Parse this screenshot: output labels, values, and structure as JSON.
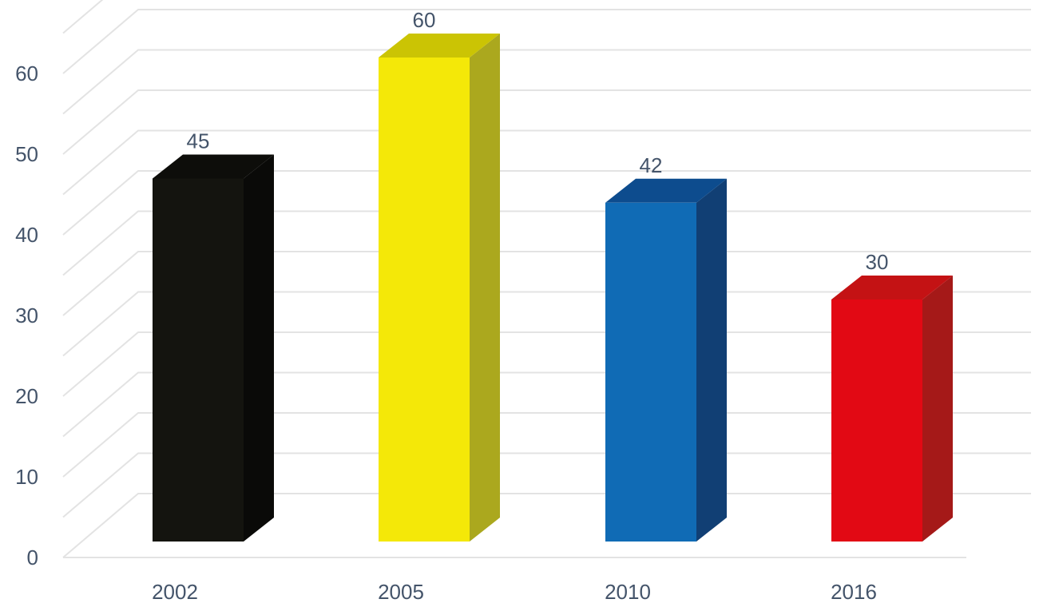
{
  "chart_data": {
    "type": "bar",
    "categories": [
      "2002",
      "2005",
      "2010",
      "2016"
    ],
    "values": [
      45,
      60,
      42,
      30
    ],
    "colors": {
      "front": [
        "#14140f",
        "#f4e808",
        "#106bb5",
        "#e20914"
      ],
      "side": [
        "#0a0a08",
        "#aba81e",
        "#113f74",
        "#a51918"
      ],
      "top": [
        "#0d0d0a",
        "#cbc404",
        "#0d4c8e",
        "#c41214"
      ]
    },
    "yticks": [
      "0",
      "10",
      "20",
      "30",
      "40",
      "50",
      "60"
    ],
    "ylim": [
      0,
      60
    ],
    "data_labels": [
      "45",
      "60",
      "42",
      "30"
    ],
    "grid": true,
    "legend": "none",
    "title": "",
    "xlabel": "",
    "ylabel": ""
  }
}
